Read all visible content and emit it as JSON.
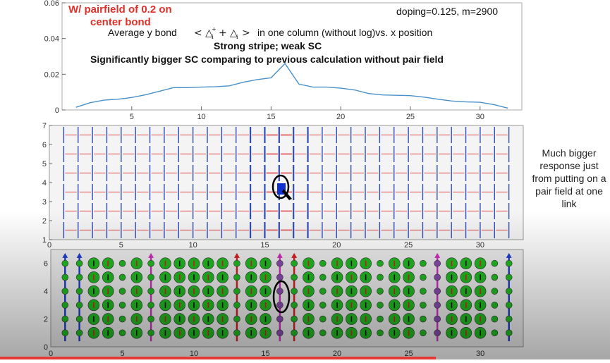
{
  "annotations": {
    "pairfield_line1": "W/ pairfield of 0.2 on",
    "pairfield_line2": "center bond",
    "params": "doping=0.125, m=2900",
    "title_prefix": "Average y bond",
    "title_suffix": "in one column (without log)vs. x position",
    "stripe": "Strong stripe; weak SC",
    "comparison": "Significantly bigger SC comparing to previous calculation without pair field",
    "side_note": "Much bigger response just from putting on a pair field at one link"
  },
  "colors": {
    "line": "#4a90c8",
    "red_annotation": "#e0302a",
    "horizontal_bond": "#e05050",
    "vertical_bond": "#1030b0",
    "site_green": "#22bb22",
    "site_purple": "#8a4bb0",
    "spin_red": "#d82020",
    "spin_blue": "#2040d0",
    "spin_magenta": "#d030c0"
  },
  "chart_data": [
    {
      "type": "line",
      "x": [
        1,
        2,
        3,
        4,
        5,
        6,
        7,
        8,
        9,
        10,
        11,
        12,
        13,
        14,
        15,
        16,
        17,
        18,
        19,
        20,
        21,
        22,
        23,
        24,
        25,
        26,
        27,
        28,
        29,
        30,
        31,
        32
      ],
      "y": [
        0.0015,
        0.004,
        0.0055,
        0.006,
        0.007,
        0.0085,
        0.0105,
        0.0125,
        0.0125,
        0.0128,
        0.013,
        0.0135,
        0.0155,
        0.017,
        0.018,
        0.026,
        0.0145,
        0.0128,
        0.0128,
        0.0122,
        0.0112,
        0.0092,
        0.0084,
        0.0082,
        0.008,
        0.0072,
        0.006,
        0.005,
        0.0045,
        0.0043,
        0.003,
        0.001
      ],
      "xlim": [
        0,
        33
      ],
      "ylim": [
        0,
        0.06
      ],
      "yticks": [
        0,
        0.02,
        0.04,
        0.06
      ],
      "yticklabels": [
        "0",
        "0.02",
        "0.04",
        "0.06"
      ],
      "xticks": [
        5,
        10,
        15,
        20,
        25,
        30
      ],
      "xticklabels": [
        "5",
        "10",
        "15",
        "20",
        "25",
        "30"
      ]
    },
    {
      "type": "heatmap",
      "description_kind": "bond lattice",
      "xlim": [
        0,
        33
      ],
      "ylim": [
        1,
        7
      ],
      "xticks": [
        0,
        5,
        10,
        15,
        20,
        25,
        30
      ],
      "xticklabels": [
        "0",
        "5",
        "10",
        "15",
        "20",
        "25",
        "30"
      ],
      "yticks": [
        1,
        2,
        3,
        4,
        5,
        6,
        7
      ],
      "yticklabels": [
        "1",
        "2",
        "3",
        "4",
        "5",
        "6",
        "7"
      ],
      "columns": 32,
      "rows": 6,
      "pairfield_bond": {
        "x": 16,
        "y": 3.6
      }
    },
    {
      "type": "scatter",
      "description_kind": "site lattice",
      "xlim": [
        0,
        33
      ],
      "ylim": [
        0,
        7
      ],
      "xticks": [
        0,
        5,
        10,
        15,
        20,
        25,
        30
      ],
      "xticklabels": [
        "0",
        "5",
        "10",
        "15",
        "20",
        "25",
        "30"
      ],
      "yticks": [
        0,
        2,
        4,
        6
      ],
      "yticklabels": [
        "0",
        "2",
        "4",
        "6"
      ],
      "columns": 32,
      "rows": [
        1,
        2,
        3,
        4,
        5,
        6
      ],
      "large_site_columns": [
        3,
        4,
        6,
        8,
        9,
        10,
        11,
        12,
        14,
        15,
        18,
        20,
        21,
        22,
        24,
        25,
        28,
        29,
        30
      ]
    }
  ]
}
